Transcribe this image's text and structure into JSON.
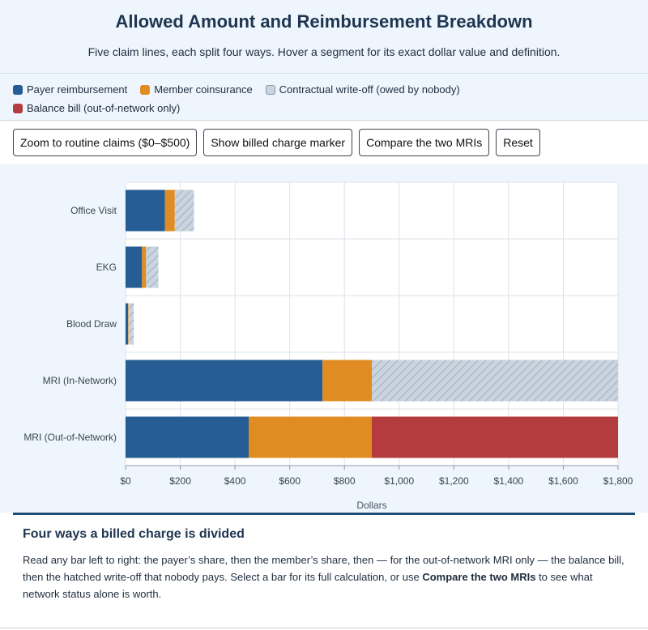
{
  "header": {
    "title": "Allowed Amount and Reimbursement Breakdown",
    "subtitle": "Five claim lines, each split four ways. Hover a segment for its exact dollar value and definition."
  },
  "legend": [
    {
      "label": "Payer reimbursement",
      "color": "#265d94",
      "pattern": "solid"
    },
    {
      "label": "Member coinsurance",
      "color": "#e08c22",
      "pattern": "solid"
    },
    {
      "label": "Contractual write-off (owed by nobody)",
      "color": "#c9d4df",
      "pattern": "hatched"
    },
    {
      "label": "Balance bill (out-of-network only)",
      "color": "#b43c3f",
      "pattern": "solid"
    }
  ],
  "controls": {
    "zoom_label": "Zoom to routine claims ($0–$500)",
    "marker_label": "Show billed charge marker",
    "compare_label": "Compare the two MRIs",
    "reset_label": "Reset"
  },
  "chart_data": {
    "type": "bar",
    "orientation": "horizontal",
    "stacked": true,
    "categories": [
      "Office Visit",
      "EKG",
      "Blood Draw",
      "MRI (In-Network)",
      "MRI (Out-of-Network)"
    ],
    "series": [
      {
        "name": "Payer reimbursement",
        "color": "#265d94",
        "values": [
          144,
          60,
          9,
          720,
          450
        ]
      },
      {
        "name": "Member coinsurance",
        "color": "#e08c22",
        "values": [
          36,
          15,
          2,
          180,
          450
        ]
      },
      {
        "name": "Balance bill (out-of-network only)",
        "color": "#b43c3f",
        "values": [
          0,
          0,
          0,
          0,
          900
        ]
      },
      {
        "name": "Contractual write-off (owed by nobody)",
        "color": "#c9d4df",
        "values": [
          70,
          45,
          19,
          900,
          0
        ]
      }
    ],
    "xlabel": "Dollars",
    "xlim": [
      0,
      1800
    ],
    "xticks": [
      "$0",
      "$200",
      "$400",
      "$600",
      "$800",
      "$1,000",
      "$1,200",
      "$1,400",
      "$1,600",
      "$1,800"
    ],
    "xtick_values": [
      0,
      200,
      400,
      600,
      800,
      1000,
      1200,
      1400,
      1600,
      1800
    ],
    "grid": true
  },
  "info": {
    "title": "Four ways a billed charge is divided",
    "body_before": "Read any bar left to right: the payer’s share, then the member’s share, then — for the out-of-network MRI only — the balance bill, then the hatched write-off that nobody pays. Select a bar for its full calculation, or use ",
    "body_strong": "Compare the two MRIs",
    "body_after": " to see what network status alone is worth."
  }
}
